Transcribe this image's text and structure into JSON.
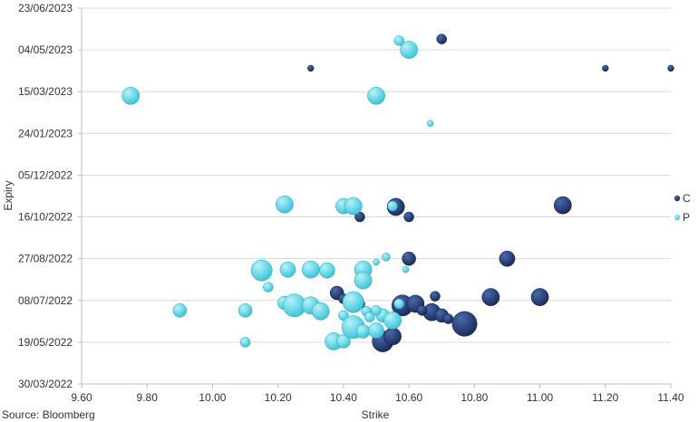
{
  "source_note": "Source: Bloomberg",
  "colors": {
    "C": "#17295c",
    "P": "#33c3d9",
    "grid": "#d9d9d9",
    "axis": "#bfbfbf"
  },
  "chart_data": {
    "type": "scatter",
    "title": "",
    "xlabel": "Strike",
    "ylabel": "Expiry",
    "xlim": [
      9.6,
      11.4
    ],
    "xticks": [
      "9.60",
      "9.80",
      "10.00",
      "10.20",
      "10.40",
      "10.60",
      "10.80",
      "11.00",
      "11.20",
      "11.40"
    ],
    "ylim": [
      "2022-03-30",
      "2023-06-23"
    ],
    "yticks": [
      "30/03/2022",
      "19/05/2022",
      "08/07/2022",
      "27/08/2022",
      "16/10/2022",
      "05/12/2022",
      "24/01/2023",
      "15/03/2023",
      "04/05/2023",
      "23/06/2023"
    ],
    "bubble_size": "relative volume",
    "grid": "horizontal",
    "legend_position": "right",
    "series": [
      {
        "name": "C",
        "color": "#17295c",
        "points": [
          {
            "x": 10.7,
            "y": "2023-05-17",
            "s": 2
          },
          {
            "x": 10.3,
            "y": "2023-04-12",
            "s": 1
          },
          {
            "x": 11.2,
            "y": "2023-04-12",
            "s": 1
          },
          {
            "x": 11.4,
            "y": "2023-04-12",
            "s": 1
          },
          {
            "x": 10.56,
            "y": "2022-10-28",
            "s": 4
          },
          {
            "x": 11.07,
            "y": "2022-10-30",
            "s": 4
          },
          {
            "x": 10.45,
            "y": "2022-10-16",
            "s": 2
          },
          {
            "x": 10.6,
            "y": "2022-10-16",
            "s": 2
          },
          {
            "x": 10.6,
            "y": "2022-08-27",
            "s": 3
          },
          {
            "x": 10.9,
            "y": "2022-08-27",
            "s": 3.5
          },
          {
            "x": 10.85,
            "y": "2022-07-12",
            "s": 4
          },
          {
            "x": 11.0,
            "y": "2022-07-12",
            "s": 4
          },
          {
            "x": 10.68,
            "y": "2022-07-13",
            "s": 2
          },
          {
            "x": 10.58,
            "y": "2022-07-02",
            "s": 5
          },
          {
            "x": 10.62,
            "y": "2022-07-04",
            "s": 4
          },
          {
            "x": 10.67,
            "y": "2022-06-24",
            "s": 4
          },
          {
            "x": 10.7,
            "y": "2022-06-20",
            "s": 3
          },
          {
            "x": 10.72,
            "y": "2022-06-16",
            "s": 2
          },
          {
            "x": 10.77,
            "y": "2022-06-10",
            "s": 6
          },
          {
            "x": 10.52,
            "y": "2022-05-20",
            "s": 5
          },
          {
            "x": 10.55,
            "y": "2022-05-26",
            "s": 4
          },
          {
            "x": 10.38,
            "y": "2022-07-17",
            "s": 3
          },
          {
            "x": 10.4,
            "y": "2022-07-10",
            "s": 2
          },
          {
            "x": 10.45,
            "y": "2022-07-04",
            "s": 2
          },
          {
            "x": 10.64,
            "y": "2022-06-26",
            "s": 2
          }
        ]
      },
      {
        "name": "P",
        "color": "#33c3d9",
        "points": [
          {
            "x": 10.57,
            "y": "2023-05-15",
            "s": 2
          },
          {
            "x": 10.6,
            "y": "2023-05-04",
            "s": 4
          },
          {
            "x": 9.75,
            "y": "2023-03-10",
            "s": 4
          },
          {
            "x": 10.5,
            "y": "2023-03-10",
            "s": 4
          },
          {
            "x": 10.665,
            "y": "2023-02-05",
            "s": 1
          },
          {
            "x": 10.22,
            "y": "2022-10-31",
            "s": 4
          },
          {
            "x": 10.4,
            "y": "2022-10-29",
            "s": 3.5
          },
          {
            "x": 10.43,
            "y": "2022-10-29",
            "s": 4
          },
          {
            "x": 10.55,
            "y": "2022-10-29",
            "s": 2
          },
          {
            "x": 10.53,
            "y": "2022-08-29",
            "s": 1.5
          },
          {
            "x": 10.5,
            "y": "2022-08-23",
            "s": 1
          },
          {
            "x": 10.59,
            "y": "2022-08-14",
            "s": 1
          },
          {
            "x": 10.15,
            "y": "2022-08-13",
            "s": 5
          },
          {
            "x": 10.23,
            "y": "2022-08-14",
            "s": 3.5
          },
          {
            "x": 10.3,
            "y": "2022-08-14",
            "s": 4
          },
          {
            "x": 10.35,
            "y": "2022-08-13",
            "s": 3.5
          },
          {
            "x": 10.46,
            "y": "2022-08-14",
            "s": 4
          },
          {
            "x": 10.46,
            "y": "2022-08-01",
            "s": 4
          },
          {
            "x": 10.17,
            "y": "2022-07-24",
            "s": 2
          },
          {
            "x": 10.22,
            "y": "2022-07-05",
            "s": 3
          },
          {
            "x": 10.25,
            "y": "2022-07-02",
            "s": 5.5
          },
          {
            "x": 10.3,
            "y": "2022-07-02",
            "s": 4
          },
          {
            "x": 10.33,
            "y": "2022-06-25",
            "s": 4
          },
          {
            "x": 10.43,
            "y": "2022-07-06",
            "s": 5
          },
          {
            "x": 10.47,
            "y": "2022-06-25",
            "s": 2
          },
          {
            "x": 10.52,
            "y": "2022-06-20",
            "s": 3
          },
          {
            "x": 10.55,
            "y": "2022-06-14",
            "s": 4
          },
          {
            "x": 10.57,
            "y": "2022-07-04",
            "s": 2
          },
          {
            "x": 10.5,
            "y": "2022-06-26",
            "s": 2
          },
          {
            "x": 10.4,
            "y": "2022-06-20",
            "s": 2
          },
          {
            "x": 10.37,
            "y": "2022-05-20",
            "s": 4
          },
          {
            "x": 10.4,
            "y": "2022-05-20",
            "s": 3
          },
          {
            "x": 10.43,
            "y": "2022-06-06",
            "s": 5.5
          },
          {
            "x": 10.46,
            "y": "2022-06-01",
            "s": 3
          },
          {
            "x": 10.5,
            "y": "2022-06-02",
            "s": 3.5
          },
          {
            "x": 10.48,
            "y": "2022-06-18",
            "s": 2
          },
          {
            "x": 9.9,
            "y": "2022-06-26",
            "s": 3
          },
          {
            "x": 10.1,
            "y": "2022-06-26",
            "s": 3
          },
          {
            "x": 10.1,
            "y": "2022-05-19",
            "s": 2
          }
        ]
      }
    ]
  }
}
